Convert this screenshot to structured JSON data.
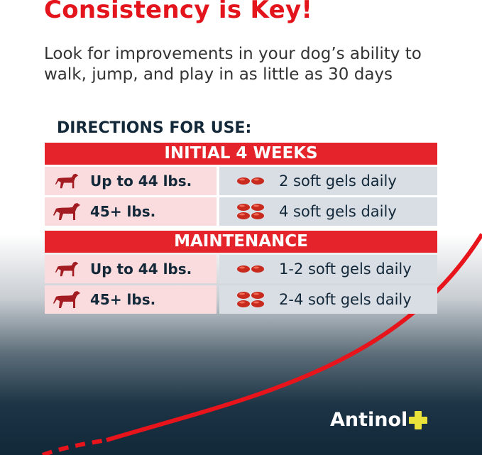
{
  "title": "Consistency is Key!",
  "subtitle": "Look for improvements in your dog’s ability to walk, jump, and play in as little as 30 days",
  "directions_heading": "DIRECTIONS FOR USE:",
  "sections": [
    {
      "heading": "INITIAL 4 WEEKS",
      "rows": [
        {
          "weight": "Up to 44 lbs.",
          "dose": "2 soft gels daily",
          "dog_icon": "small-dog-icon",
          "gel_icon": "two-softgels-icon"
        },
        {
          "weight": "45+ lbs.",
          "dose": "4 soft gels daily",
          "dog_icon": "large-dog-icon",
          "gel_icon": "four-softgels-icon"
        }
      ]
    },
    {
      "heading": "MAINTENANCE",
      "rows": [
        {
          "weight": "Up to 44 lbs.",
          "dose": "1-2 soft gels daily",
          "dog_icon": "small-dog-icon",
          "gel_icon": "two-softgels-icon"
        },
        {
          "weight": "45+ lbs.",
          "dose": "2-4 soft gels daily",
          "dog_icon": "large-dog-icon",
          "gel_icon": "four-softgels-icon"
        }
      ]
    }
  ],
  "brand": "Antinol",
  "colors": {
    "accent_red": "#e4242a",
    "navy": "#13293a",
    "brand_yellow": "#e8e23a"
  }
}
